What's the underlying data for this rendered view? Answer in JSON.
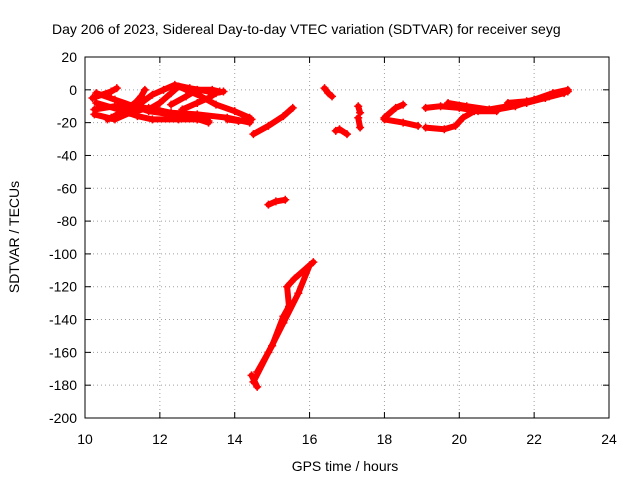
{
  "chart_data": {
    "type": "scatter",
    "title": "Day 206 of 2023, Sidereal Day-to-day VTEC variation (SDTVAR) for receiver seyg",
    "xlabel": "GPS time / hours",
    "ylabel": "SDTVAR / TECUs",
    "xlim": [
      10,
      24
    ],
    "ylim": [
      -200,
      20
    ],
    "xticks": [
      10,
      12,
      14,
      16,
      18,
      20,
      22,
      24
    ],
    "yticks": [
      -200,
      -180,
      -160,
      -140,
      -120,
      -100,
      -80,
      -60,
      -40,
      -20,
      0,
      20
    ],
    "grid": true,
    "legend": "none",
    "marker": "plus",
    "series": [
      {
        "color": "#ff0000",
        "tracks": [
          [
            [
              10.2,
              -5
            ],
            [
              10.7,
              -1
            ],
            [
              10.85,
              1
            ]
          ],
          [
            [
              10.25,
              -15
            ],
            [
              10.8,
              -18
            ],
            [
              11.2,
              -14
            ],
            [
              11.7,
              -11
            ],
            [
              12.3,
              -14
            ],
            [
              13.0,
              -15
            ],
            [
              13.8,
              -17
            ],
            [
              14.4,
              -20
            ]
          ],
          [
            [
              10.25,
              -12
            ],
            [
              10.8,
              -10
            ],
            [
              11.4,
              -10
            ],
            [
              12.0,
              -13
            ],
            [
              12.5,
              -16
            ],
            [
              13.0,
              -18
            ],
            [
              13.3,
              -19
            ]
          ],
          [
            [
              10.3,
              -8
            ],
            [
              10.9,
              -12
            ],
            [
              11.4,
              -16
            ],
            [
              11.8,
              -18
            ],
            [
              12.5,
              -18
            ],
            [
              13.0,
              -18
            ]
          ],
          [
            [
              10.3,
              -2
            ],
            [
              10.8,
              -6
            ],
            [
              11.3,
              -10
            ],
            [
              11.7,
              -13
            ],
            [
              12.3,
              -15
            ],
            [
              12.9,
              -17
            ],
            [
              13.3,
              -20
            ]
          ],
          [
            [
              10.6,
              -18
            ],
            [
              11.1,
              -14
            ],
            [
              11.5,
              -8
            ],
            [
              11.8,
              -3
            ],
            [
              12.1,
              0
            ],
            [
              12.4,
              3
            ],
            [
              12.8,
              1
            ],
            [
              13.3,
              -1
            ]
          ],
          [
            [
              10.7,
              -17
            ],
            [
              11.1,
              -12
            ],
            [
              11.45,
              -6
            ]
          ],
          [
            [
              11.0,
              -12
            ],
            [
              11.3,
              -9
            ],
            [
              11.5,
              -4
            ],
            [
              11.6,
              0
            ]
          ],
          [
            [
              11.7,
              -12
            ],
            [
              12.0,
              -8
            ],
            [
              12.3,
              -2
            ],
            [
              12.5,
              2
            ],
            [
              12.7,
              0
            ],
            [
              13.1,
              -4
            ],
            [
              13.5,
              -9
            ],
            [
              14.0,
              -13
            ],
            [
              14.4,
              -17
            ]
          ],
          [
            [
              12.3,
              -9
            ],
            [
              12.7,
              -4
            ],
            [
              13.0,
              0
            ],
            [
              13.4,
              0
            ],
            [
              13.6,
              -1
            ]
          ],
          [
            [
              12.6,
              -12
            ],
            [
              13.0,
              -8
            ],
            [
              13.3,
              -5
            ],
            [
              13.5,
              -2
            ],
            [
              13.7,
              -1
            ]
          ],
          [
            [
              13.8,
              -18
            ],
            [
              14.1,
              -19
            ],
            [
              14.45,
              -18
            ]
          ],
          [
            [
              14.5,
              -27
            ],
            [
              14.9,
              -22
            ],
            [
              15.3,
              -16
            ],
            [
              15.55,
              -11
            ]
          ],
          [
            [
              14.9,
              -70
            ],
            [
              15.1,
              -68
            ],
            [
              15.35,
              -67
            ]
          ],
          [
            [
              14.45,
              -174
            ],
            [
              14.6,
              -181
            ]
          ],
          [
            [
              14.5,
              -178
            ],
            [
              14.9,
              -160
            ],
            [
              15.3,
              -142
            ],
            [
              15.7,
              -124
            ],
            [
              16.0,
              -107
            ]
          ],
          [
            [
              14.6,
              -172
            ],
            [
              15.0,
              -156
            ],
            [
              15.3,
              -138
            ],
            [
              15.45,
              -132
            ],
            [
              15.4,
              -120
            ],
            [
              15.6,
              -115
            ],
            [
              16.1,
              -105
            ]
          ],
          [
            [
              16.4,
              1
            ],
            [
              16.5,
              -2
            ],
            [
              16.6,
              -4
            ]
          ],
          [
            [
              16.7,
              -25
            ],
            [
              16.8,
              -24
            ],
            [
              17.0,
              -27
            ]
          ],
          [
            [
              17.3,
              -10
            ],
            [
              17.35,
              -14
            ]
          ],
          [
            [
              17.3,
              -17
            ],
            [
              17.35,
              -23
            ]
          ],
          [
            [
              18.0,
              -17
            ],
            [
              18.3,
              -11
            ],
            [
              18.5,
              -9
            ]
          ],
          [
            [
              18.0,
              -18
            ],
            [
              18.5,
              -20
            ],
            [
              18.9,
              -22
            ]
          ],
          [
            [
              19.1,
              -11
            ],
            [
              19.5,
              -10
            ],
            [
              20.0,
              -11
            ],
            [
              20.5,
              -13
            ],
            [
              21.0,
              -13
            ]
          ],
          [
            [
              19.1,
              -23
            ],
            [
              19.6,
              -24
            ],
            [
              19.9,
              -22
            ],
            [
              20.1,
              -17
            ],
            [
              20.4,
              -13
            ],
            [
              21.0,
              -12
            ],
            [
              21.5,
              -10
            ],
            [
              22.0,
              -6
            ],
            [
              22.5,
              -2
            ],
            [
              22.9,
              0
            ]
          ],
          [
            [
              19.7,
              -8
            ],
            [
              20.2,
              -10
            ],
            [
              20.8,
              -12
            ],
            [
              21.3,
              -10
            ],
            [
              21.8,
              -8
            ],
            [
              22.3,
              -5
            ],
            [
              22.8,
              -2
            ]
          ],
          [
            [
              21.3,
              -8
            ],
            [
              21.8,
              -7
            ],
            [
              22.4,
              -4
            ],
            [
              22.9,
              -1
            ]
          ]
        ]
      }
    ]
  }
}
